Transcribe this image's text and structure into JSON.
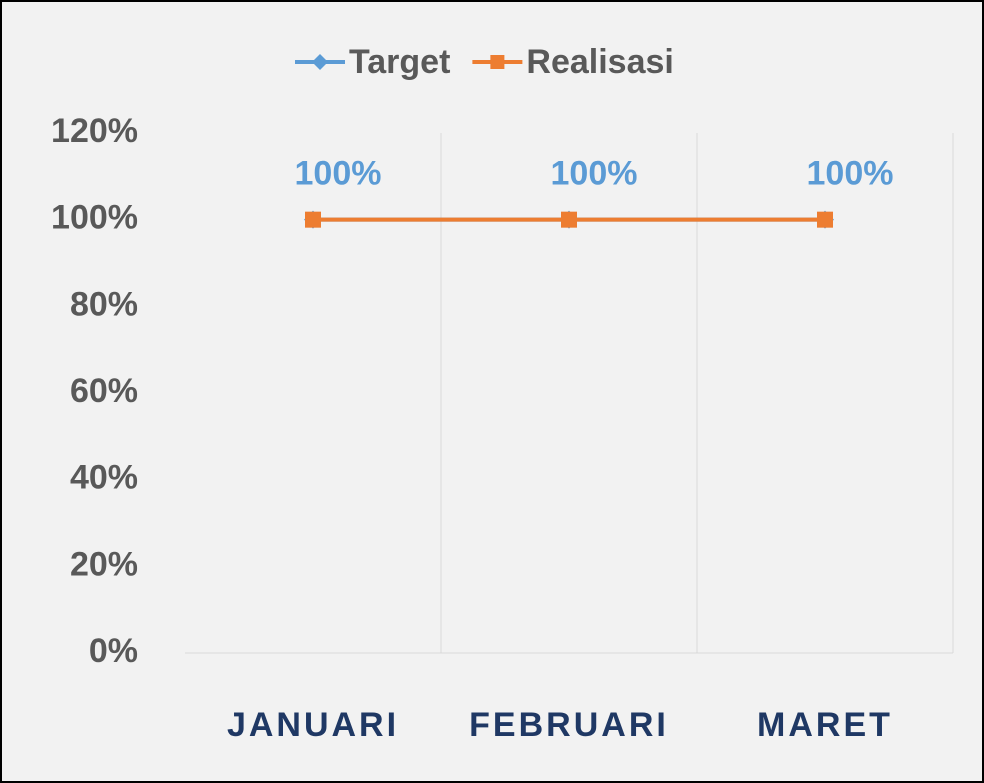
{
  "chart_data": {
    "type": "line",
    "categories": [
      "JANUARI",
      "FEBRUARI",
      "MARET"
    ],
    "series": [
      {
        "name": "Target",
        "color": "#5b9bd5",
        "marker": "diamond",
        "values": [
          100,
          100,
          100
        ],
        "value_labels": [
          "100%",
          "100%",
          "100%"
        ]
      },
      {
        "name": "Realisasi",
        "color": "#ed7d31",
        "marker": "square",
        "values": [
          100,
          100,
          100
        ]
      }
    ],
    "ylim": [
      0,
      120
    ],
    "yticks": [
      {
        "value": 0,
        "label": "0%"
      },
      {
        "value": 20,
        "label": "20%"
      },
      {
        "value": 40,
        "label": "40%"
      },
      {
        "value": 60,
        "label": "60%"
      },
      {
        "value": 80,
        "label": "80%"
      },
      {
        "value": 100,
        "label": "100%"
      },
      {
        "value": 120,
        "label": "120%"
      }
    ],
    "grid": false,
    "legend": "top"
  }
}
